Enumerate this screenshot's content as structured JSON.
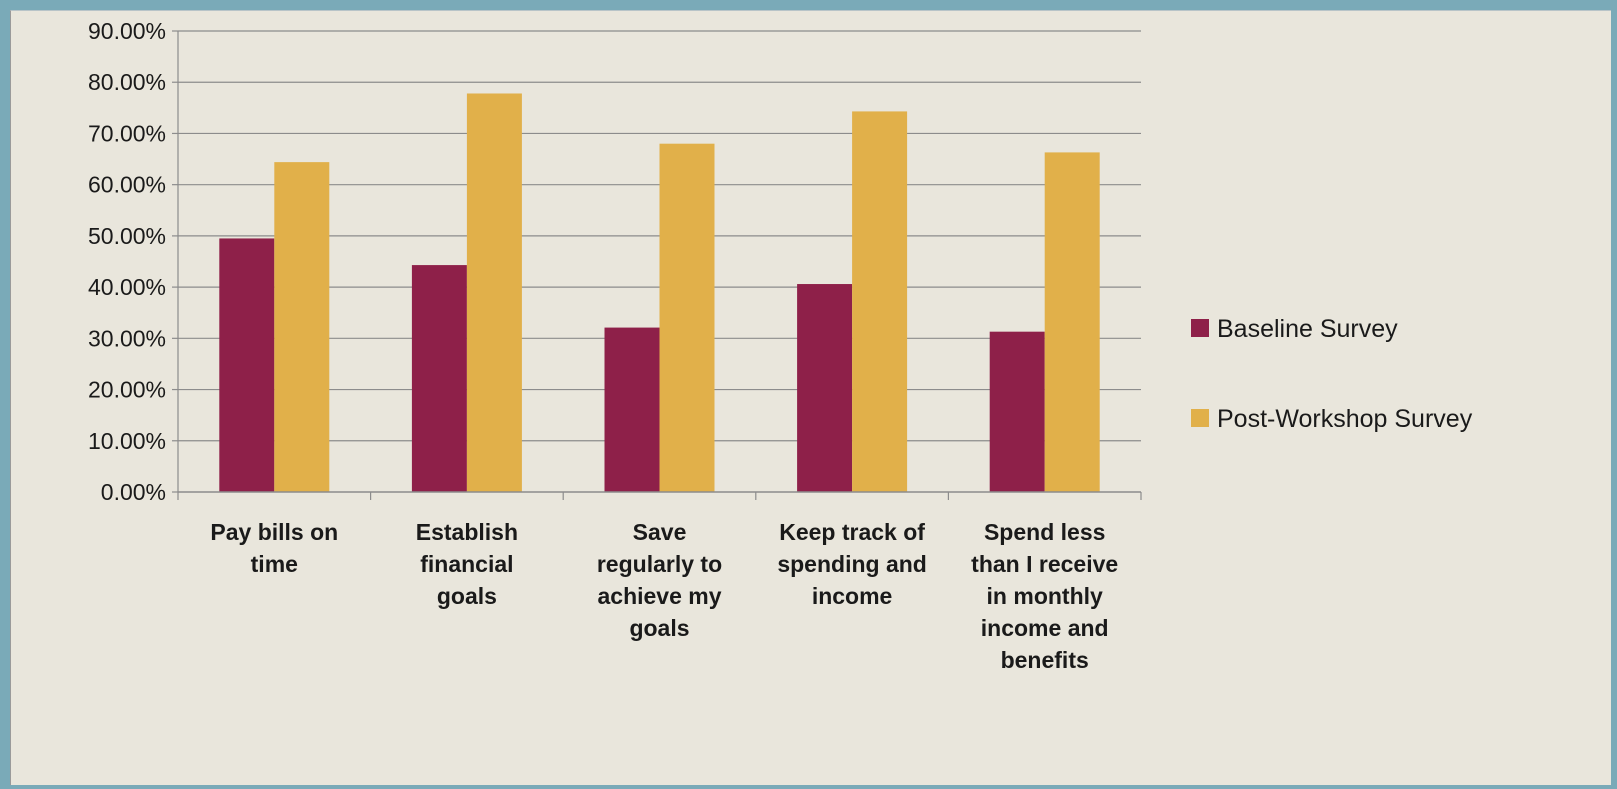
{
  "colors": {
    "baseline": "#8e2049",
    "post": "#e1b04a",
    "grid": "#8c8c8c",
    "background": "#e9e6dc",
    "outer": "#7aaab8"
  },
  "chart_data": {
    "type": "bar",
    "categories": [
      [
        "Pay bills on",
        "time"
      ],
      [
        "Establish",
        "financial",
        "goals"
      ],
      [
        "Save",
        "regularly to",
        "achieve my",
        "goals"
      ],
      [
        "Keep track of",
        "spending and",
        "income"
      ],
      [
        "Spend less",
        "than I receive",
        "in monthly",
        "income and",
        "benefits"
      ]
    ],
    "series": [
      {
        "name": "Baseline Survey",
        "values": [
          49.5,
          44.3,
          32.1,
          40.6,
          31.3
        ]
      },
      {
        "name": "Post-Workshop Survey",
        "values": [
          64.4,
          77.8,
          68.0,
          74.3,
          66.3
        ]
      }
    ],
    "ylim": [
      0,
      90
    ],
    "yticks": [
      "0.00%",
      "10.00%",
      "20.00%",
      "30.00%",
      "40.00%",
      "50.00%",
      "60.00%",
      "70.00%",
      "80.00%",
      "90.00%"
    ],
    "grid": true,
    "legend_position": "right",
    "title": "",
    "xlabel": "",
    "ylabel": ""
  }
}
